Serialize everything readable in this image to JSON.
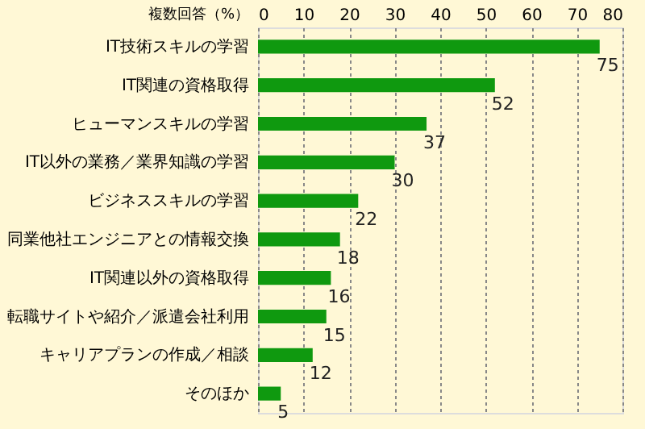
{
  "chart_data": {
    "type": "bar",
    "orientation": "horizontal",
    "xlabel": "複数回答（%）",
    "categories": [
      "IT技術スキルの学習",
      "IT関連の資格取得",
      "ヒューマンスキルの学習",
      "IT以外の業務／業界知識の学習",
      "ビジネススキルの学習",
      "同業他社エンジニアとの情報交換",
      "IT関連以外の資格取得",
      "転職サイトや紹介／派遣会社利用",
      "キャリアプランの作成／相談",
      "そのほか"
    ],
    "values": [
      75,
      52,
      37,
      30,
      22,
      18,
      16,
      15,
      12,
      5
    ],
    "color": "#0f990f",
    "xlim": [
      0,
      80
    ],
    "xticks": [
      0,
      10,
      20,
      30,
      40,
      50,
      60,
      70,
      80
    ],
    "grid": "x",
    "data_labels": true
  }
}
